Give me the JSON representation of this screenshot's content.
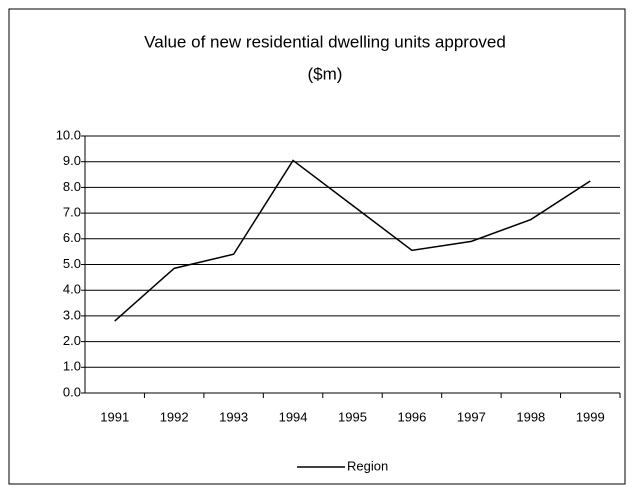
{
  "chart_data": {
    "type": "line",
    "title": [
      "Value of new residential dwelling units approved",
      "($m)"
    ],
    "categories": [
      "1991",
      "1992",
      "1993",
      "1994",
      "1995",
      "1996",
      "1997",
      "1998",
      "1999"
    ],
    "series": [
      {
        "name": "Region",
        "color": "#000000",
        "values": [
          2.8,
          4.85,
          5.4,
          9.05,
          7.3,
          5.55,
          5.9,
          6.75,
          8.25
        ]
      }
    ],
    "ylim": [
      0,
      10
    ],
    "yticks": [
      {
        "value": 0,
        "label": "0.0"
      },
      {
        "value": 1,
        "label": "1.0"
      },
      {
        "value": 2,
        "label": "2.0"
      },
      {
        "value": 3,
        "label": "3.0"
      },
      {
        "value": 4,
        "label": "4.0"
      },
      {
        "value": 5,
        "label": "5.0"
      },
      {
        "value": 6,
        "label": "6.0"
      },
      {
        "value": 7,
        "label": "7.0"
      },
      {
        "value": 8,
        "label": "8.0"
      },
      {
        "value": 9,
        "label": "9.0"
      },
      {
        "value": 10,
        "label": "10.0"
      }
    ],
    "grid": true,
    "legend": "bottom"
  }
}
